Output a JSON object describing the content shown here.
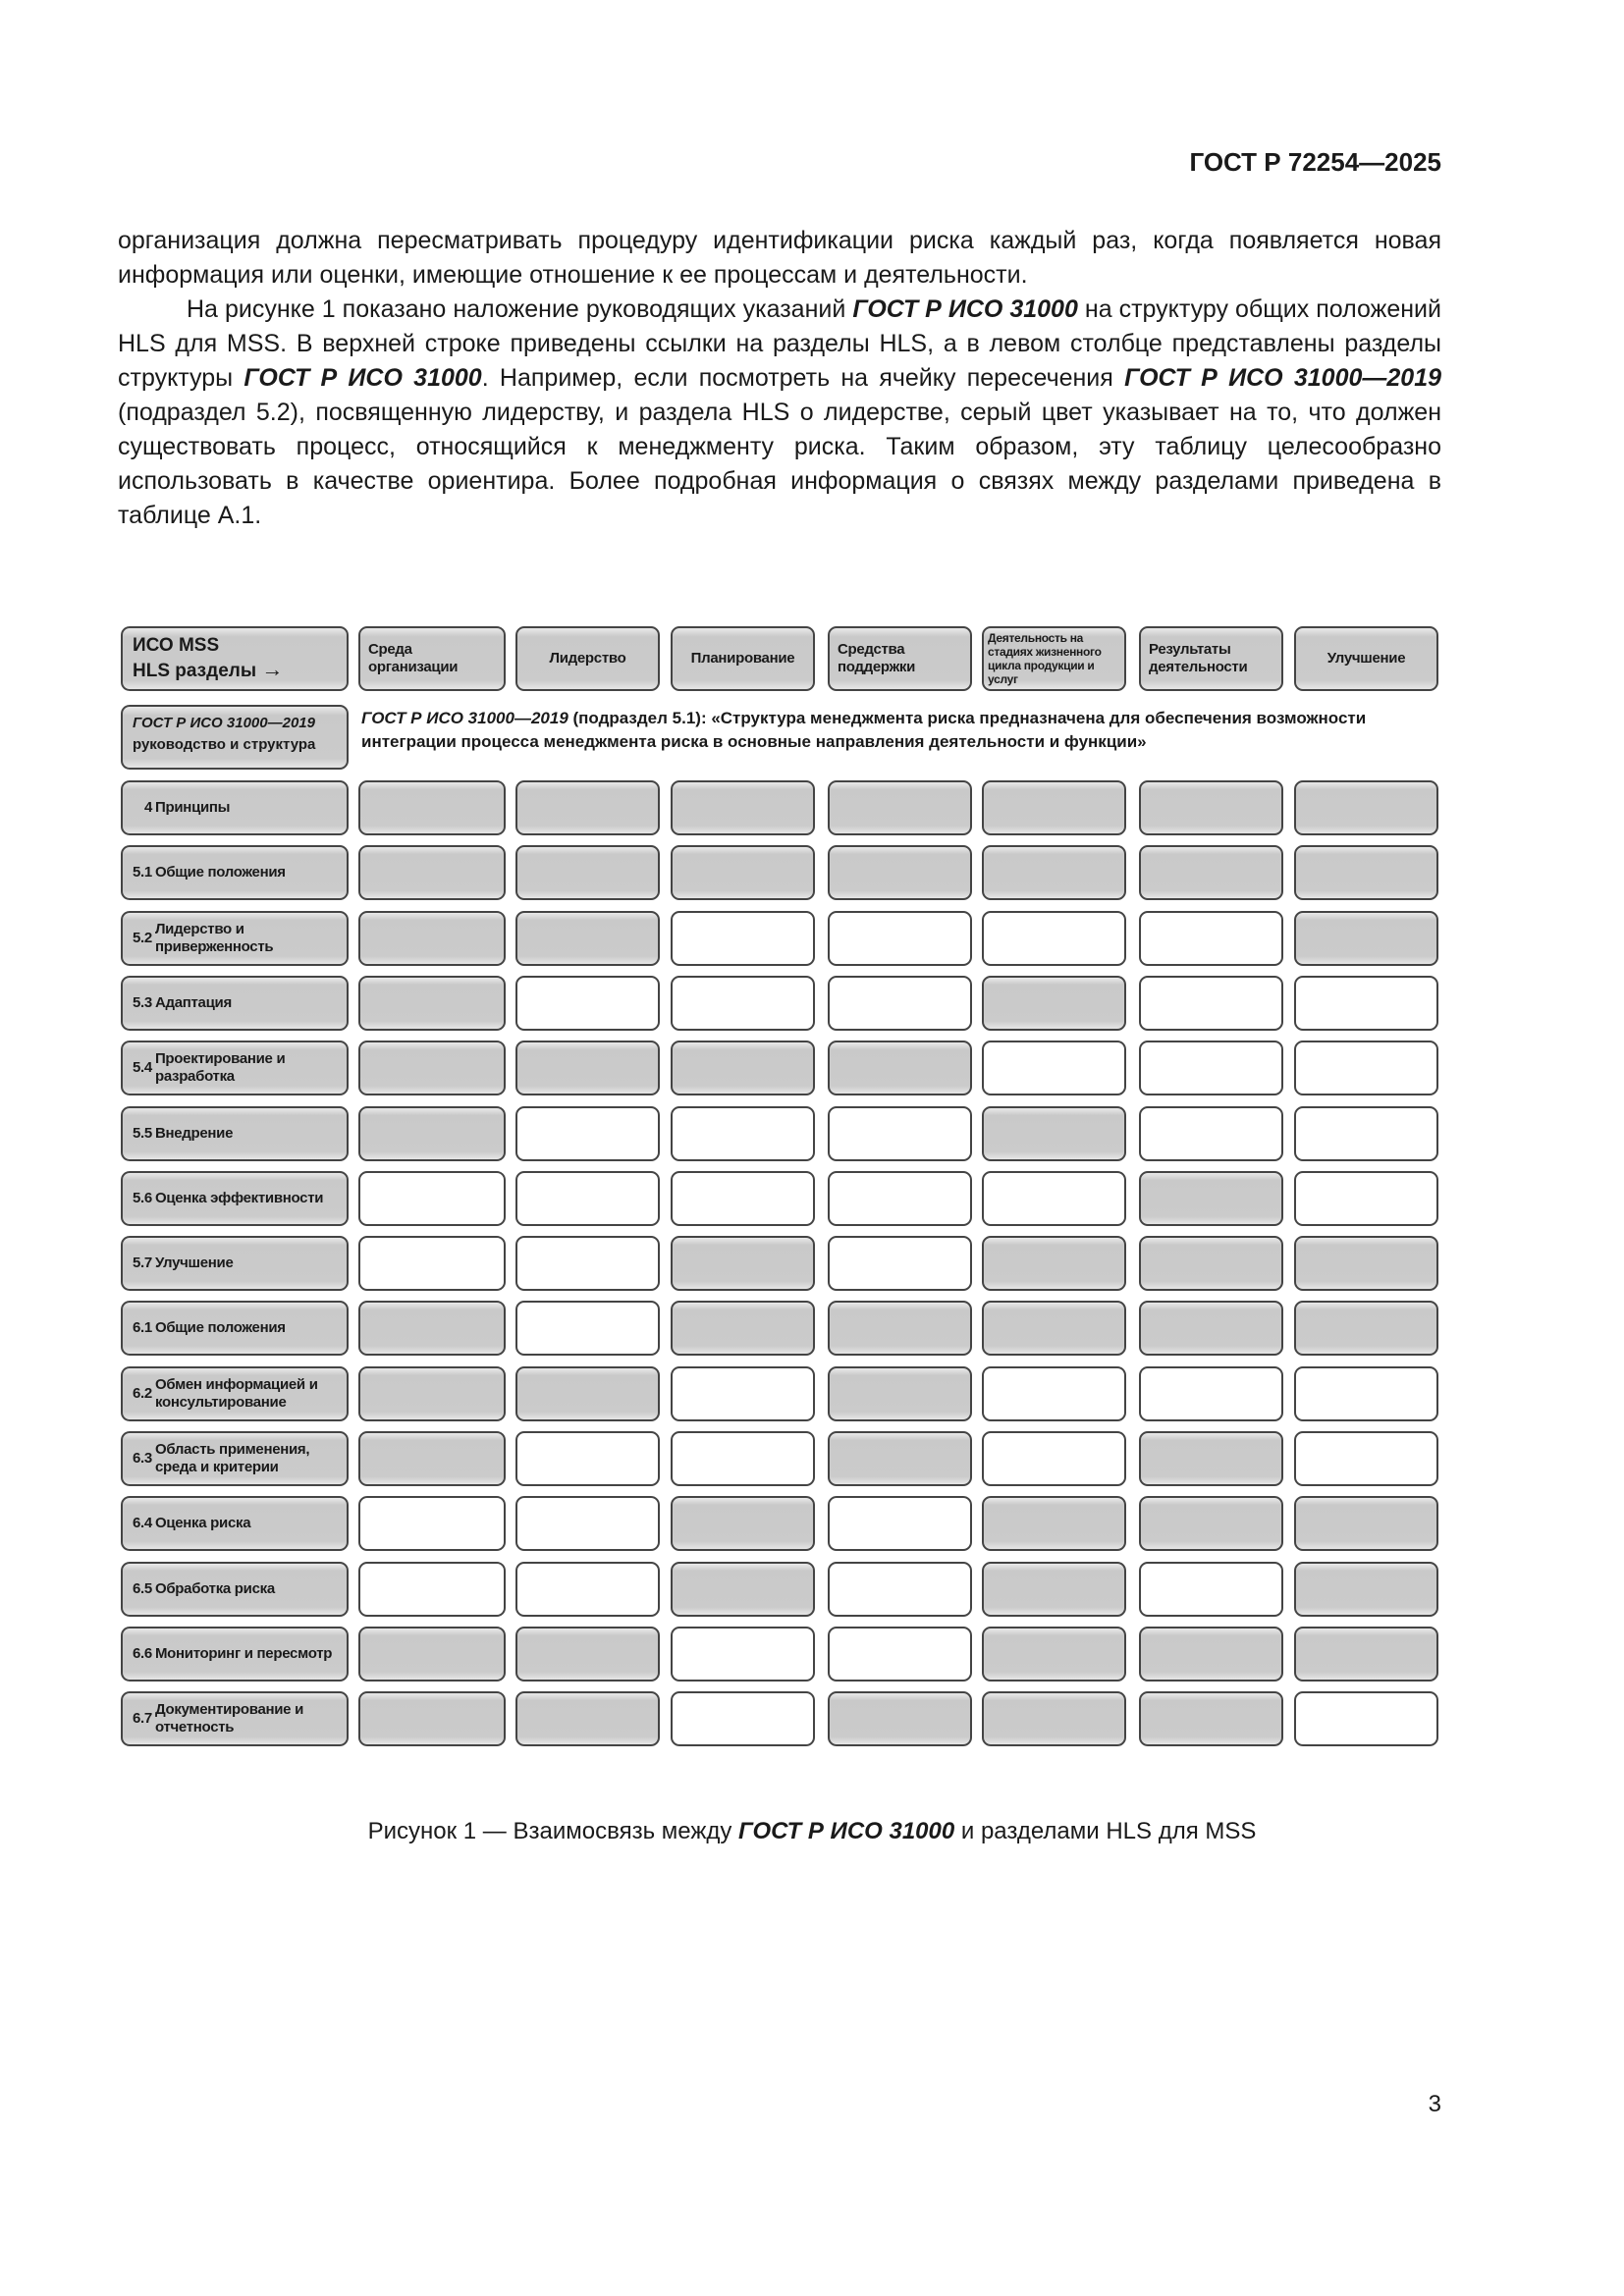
{
  "header": {
    "doc_id": "ГОСТ Р 72254—2025"
  },
  "body": {
    "p1": "организация должна пересматривать процедуру идентификации риска каждый раз, когда появляется новая информация или оценки, имеющие отношение к ее процессам и деятельности.",
    "p2_a": "На рисунке 1 показано наложение руководящих указаний ",
    "p2_b": "ГОСТ Р ИСО 31000",
    "p2_c": " на структуру общих положений HLS для MSS. В верхней строке приведены ссылки на разделы HLS, а в левом столбце представлены разделы структуры ",
    "p2_d": "ГОСТ Р ИСО 31000",
    "p2_e": ". Например, если посмотреть на ячейку пересечения ",
    "p2_f": "ГОСТ Р ИСО 31000—2019",
    "p2_g": " (подраздел 5.2), посвященную лидерству, и раздела HLS о лидерстве, серый цвет указывает на то, что должен существовать процесс, относящийся к менеджменту риска. Таким образом, эту таблицу целесообразно использовать в качестве ориентира. Более подробная информация о связях между разделами приведена в таблице А.1."
  },
  "figure": {
    "corner": {
      "line1": "ИСО MSS",
      "line2": "HLS разделы",
      "arrow": "→"
    },
    "columns": [
      "Среда организации",
      "Лидерство",
      "Планирование",
      "Средства поддержки",
      "Деятельность на стадиях жизненного цикла продукции и услуг",
      "Результаты деятельности",
      "Улучшение"
    ],
    "guide_label": {
      "italic": "ГОСТ Р ИСО 31000—2019",
      "rest": "руководство и структура"
    },
    "guide_text": {
      "italic": "ГОСТ Р ИСО 31000—2019",
      "rest": " (подраздел 5.1): «Структура менеджмента риска предназначена для обеспечения возможности интеграции процесса менеджмента риска в основные направления деятельности и функции»"
    },
    "shade_color": "#c9c9c9",
    "rows": [
      {
        "num": "4",
        "label": "Принципы",
        "cells": [
          1,
          1,
          1,
          1,
          1,
          1,
          1
        ]
      },
      {
        "num": "5.1",
        "label": "Общие положения",
        "cells": [
          1,
          1,
          1,
          1,
          1,
          1,
          1
        ]
      },
      {
        "num": "5.2",
        "label": "Лидерство и приверженность",
        "cells": [
          1,
          1,
          0,
          0,
          0,
          0,
          1
        ]
      },
      {
        "num": "5.3",
        "label": "Адаптация",
        "cells": [
          1,
          0,
          0,
          0,
          1,
          0,
          0
        ]
      },
      {
        "num": "5.4",
        "label": "Проектирование и разработка",
        "cells": [
          1,
          1,
          1,
          1,
          0,
          0,
          0
        ]
      },
      {
        "num": "5.5",
        "label": "Внедрение",
        "cells": [
          1,
          0,
          0,
          0,
          1,
          0,
          0
        ]
      },
      {
        "num": "5.6",
        "label": "Оценка эффективности",
        "cells": [
          0,
          0,
          0,
          0,
          0,
          1,
          0
        ]
      },
      {
        "num": "5.7",
        "label": "Улучшение",
        "cells": [
          0,
          0,
          1,
          0,
          1,
          1,
          1
        ]
      },
      {
        "num": "6.1",
        "label": "Общие положения",
        "cells": [
          1,
          0,
          1,
          1,
          1,
          1,
          1
        ]
      },
      {
        "num": "6.2",
        "label": "Обмен информацией и консультирование",
        "cells": [
          1,
          1,
          0,
          1,
          0,
          0,
          0
        ]
      },
      {
        "num": "6.3",
        "label": "Область применения, среда и критерии",
        "cells": [
          1,
          0,
          0,
          1,
          0,
          1,
          0
        ]
      },
      {
        "num": "6.4",
        "label": "Оценка риска",
        "cells": [
          0,
          0,
          1,
          0,
          1,
          1,
          1
        ]
      },
      {
        "num": "6.5",
        "label": "Обработка риска",
        "cells": [
          0,
          0,
          1,
          0,
          1,
          0,
          1
        ]
      },
      {
        "num": "6.6",
        "label": "Мониторинг и пересмотр",
        "cells": [
          1,
          1,
          0,
          0,
          1,
          1,
          1
        ]
      },
      {
        "num": "6.7",
        "label": "Документирование и отчетность",
        "cells": [
          1,
          1,
          0,
          1,
          1,
          1,
          0
        ]
      }
    ],
    "caption_a": "Рисунок 1 — Взаимосвязь между ",
    "caption_b": "ГОСТ Р ИСО 31000",
    "caption_c": " и разделами HLS для MSS"
  },
  "footer": {
    "page_number": "3"
  }
}
